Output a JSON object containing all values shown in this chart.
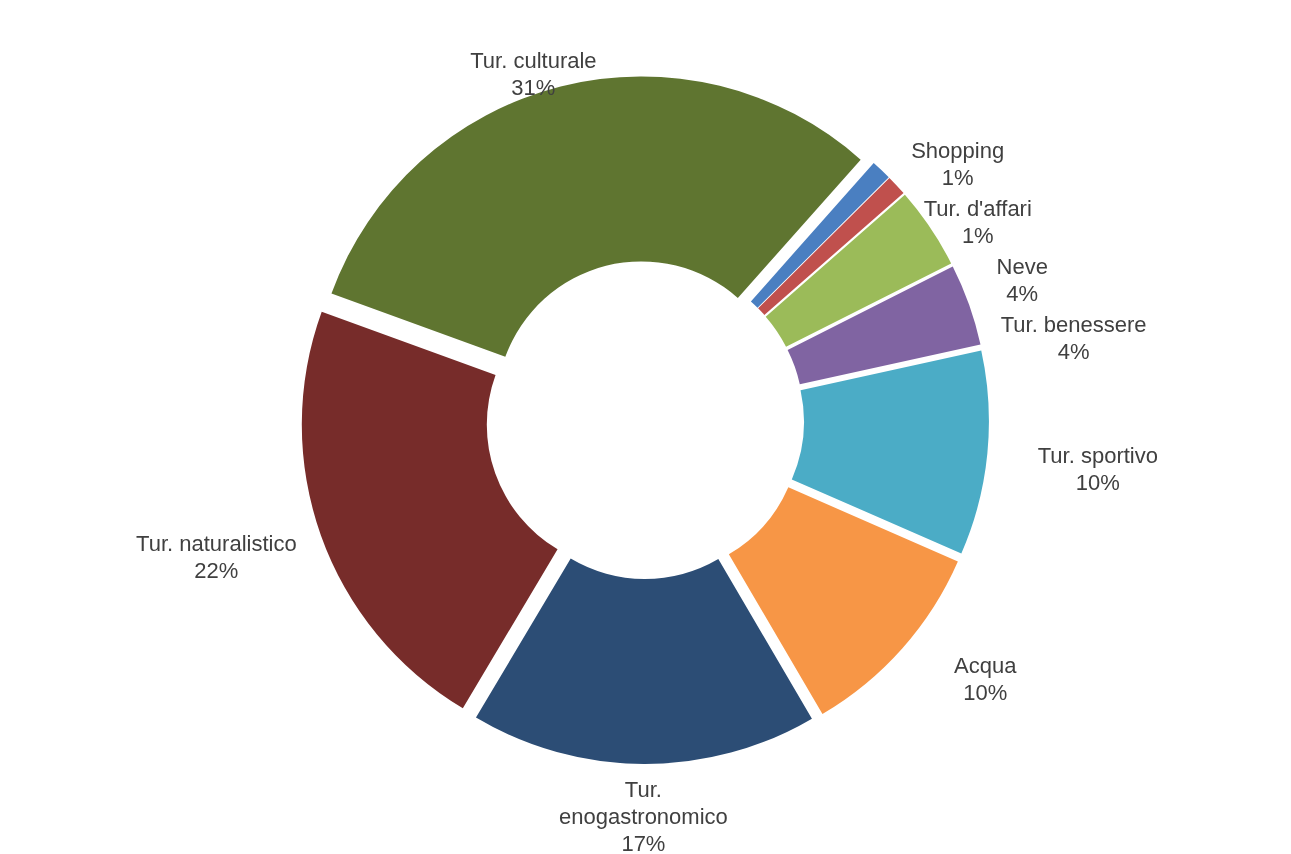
{
  "chart_data": {
    "type": "donut",
    "categories": [
      "Shopping",
      "Tur. d'affari",
      "Neve",
      "Tur. benessere",
      "Tur. sportivo",
      "Acqua",
      "Tur. enogastronomico",
      "Tur. naturalistico",
      "Tur. culturale"
    ],
    "values": [
      1,
      1,
      4,
      4,
      10,
      10,
      17,
      22,
      31
    ],
    "value_labels": [
      "1%",
      "1%",
      "4%",
      "4%",
      "10%",
      "10%",
      "17%",
      "22%",
      "31%"
    ],
    "colors": [
      "#4a7fc1",
      "#c0504d",
      "#9bbb59",
      "#8064a2",
      "#4bacc6",
      "#f79646",
      "#2c4d75",
      "#772c2a",
      "#5f7530"
    ],
    "legend": false
  }
}
